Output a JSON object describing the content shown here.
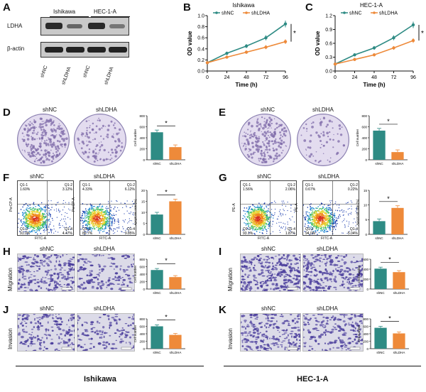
{
  "panels": {
    "A": "A",
    "B": "B",
    "C": "C",
    "D": "D",
    "E": "E",
    "F": "F",
    "G": "G",
    "H": "H",
    "I": "I",
    "J": "J",
    "K": "K"
  },
  "blot": {
    "cell_lines": [
      "Ishikawa",
      "HEC-1-A"
    ],
    "proteins": [
      "LDHA",
      "β-actin"
    ],
    "lanes": [
      "shNC",
      "shLDHA",
      "shNC",
      "shLDHA"
    ]
  },
  "legend": {
    "shNC": "shNC",
    "shLDHA": "shLDHA"
  },
  "colors": {
    "shNC": "#2e8b84",
    "shLDHA": "#ee8a3a",
    "dish": "#7d6aa8",
    "transwell": "#4a3d9c"
  },
  "row_labels": {
    "migration": "Migration",
    "invasion": "Invasion"
  },
  "bottom": {
    "left": "Ishikawa",
    "right": "HEC-1-A"
  },
  "sig": "*",
  "flow": {
    "F": {
      "shNC": {
        "q1": "Q1-1",
        "q2": "Q1-2",
        "q3": "Q1-3",
        "q4": "Q1-4",
        "v1": "1.60%",
        "v2": "3.12%",
        "v3": "91.0%",
        "v4": "4.47%"
      },
      "shLDHA": {
        "q1": "Q1-1",
        "q2": "Q1-2",
        "q3": "Q1-3",
        "q4": "Q1-4",
        "v1": "4.33%",
        "v2": "6.12%",
        "v3": "86.7%",
        "v4": "9.85%"
      },
      "xlabel": "FITC-A",
      "ylabel": "PerCP-A"
    },
    "G": {
      "shNC": {
        "q1": "Q1-1",
        "q2": "Q1-2",
        "q3": "Q1-3",
        "q4": "Q1-4",
        "v1": "1.56%",
        "v2": "2.06%",
        "v3": "93.1%",
        "v4": "1.87%"
      },
      "shLDHA": {
        "q1": "Q1-1",
        "q2": "Q1-2",
        "q3": "Q1-3",
        "q4": "Q1-4",
        "v1": "0.67%",
        "v2": "0.22%",
        "v3": "94.0%",
        "v4": "5.04%"
      },
      "xlabel": "FITC-A",
      "ylabel": "PE-A"
    }
  },
  "chart_data": [
    {
      "id": "B",
      "type": "line",
      "title": "Ishikawa",
      "xlabel": "Time (h)",
      "ylabel": "OD value",
      "x": [
        0,
        24,
        48,
        72,
        96
      ],
      "xlim": [
        0,
        96
      ],
      "ylim": [
        0.0,
        1.0
      ],
      "yticks": [
        0.0,
        0.2,
        0.4,
        0.6,
        0.8,
        1.0
      ],
      "series": [
        {
          "name": "shNC",
          "values": [
            0.15,
            0.32,
            0.45,
            0.6,
            0.85
          ]
        },
        {
          "name": "shLDHA",
          "values": [
            0.15,
            0.25,
            0.34,
            0.43,
            0.53
          ]
        }
      ]
    },
    {
      "id": "C",
      "type": "line",
      "title": "HEC-1-A",
      "xlabel": "Time (h)",
      "ylabel": "OD value",
      "x": [
        0,
        24,
        48,
        72,
        96
      ],
      "xlim": [
        0,
        96
      ],
      "ylim": [
        0.0,
        1.2
      ],
      "yticks": [
        0.0,
        0.3,
        0.6,
        0.9,
        1.2
      ],
      "series": [
        {
          "name": "shNC",
          "values": [
            0.15,
            0.35,
            0.5,
            0.72,
            1.0
          ]
        },
        {
          "name": "shLDHA",
          "values": [
            0.15,
            0.25,
            0.35,
            0.5,
            0.66
          ]
        }
      ]
    },
    {
      "id": "D",
      "type": "bar",
      "categories": [
        "shNC",
        "shLDHA"
      ],
      "values": [
        500,
        230
      ],
      "ylim": [
        0,
        800
      ],
      "yticks": [
        0,
        200,
        400,
        600,
        800
      ],
      "ylabel": "Cell number"
    },
    {
      "id": "E",
      "type": "bar",
      "categories": [
        "shNC",
        "shLDHA"
      ],
      "values": [
        530,
        140
      ],
      "ylim": [
        0,
        800
      ],
      "yticks": [
        0,
        200,
        400,
        600,
        800
      ],
      "ylabel": "Cell number"
    },
    {
      "id": "F",
      "type": "bar",
      "categories": [
        "shNC",
        "shLDHA"
      ],
      "values": [
        9,
        15
      ],
      "ylim": [
        0,
        20
      ],
      "yticks": [
        0,
        5,
        10,
        15,
        20
      ],
      "ylabel": "Apoptosis rate (%)"
    },
    {
      "id": "G",
      "type": "bar",
      "categories": [
        "shNC",
        "shLDHA"
      ],
      "values": [
        4.5,
        9
      ],
      "ylim": [
        0,
        15
      ],
      "yticks": [
        0,
        5,
        10,
        15
      ],
      "ylabel": "Apoptosis rate (%)"
    },
    {
      "id": "H",
      "type": "bar",
      "categories": [
        "shNC",
        "shLDHA"
      ],
      "values": [
        510,
        320
      ],
      "ylim": [
        0,
        800
      ],
      "yticks": [
        0,
        200,
        400,
        600,
        800
      ],
      "ylabel": "Cell number"
    },
    {
      "id": "I",
      "type": "bar",
      "categories": [
        "shNC",
        "shLDHA"
      ],
      "values": [
        410,
        340
      ],
      "ylim": [
        0,
        600
      ],
      "yticks": [
        0,
        200,
        400,
        600
      ],
      "ylabel": "Cell number"
    },
    {
      "id": "J",
      "type": "bar",
      "categories": [
        "shNC",
        "shLDHA"
      ],
      "values": [
        600,
        370
      ],
      "ylim": [
        0,
        800
      ],
      "yticks": [
        0,
        200,
        400,
        600,
        800
      ],
      "ylabel": "Cell number"
    },
    {
      "id": "K",
      "type": "bar",
      "categories": [
        "shNC",
        "shLDHA"
      ],
      "values": [
        560,
        410
      ],
      "ylim": [
        0,
        800
      ],
      "yticks": [
        0,
        200,
        400,
        600,
        800
      ],
      "ylabel": "Cell number"
    }
  ]
}
